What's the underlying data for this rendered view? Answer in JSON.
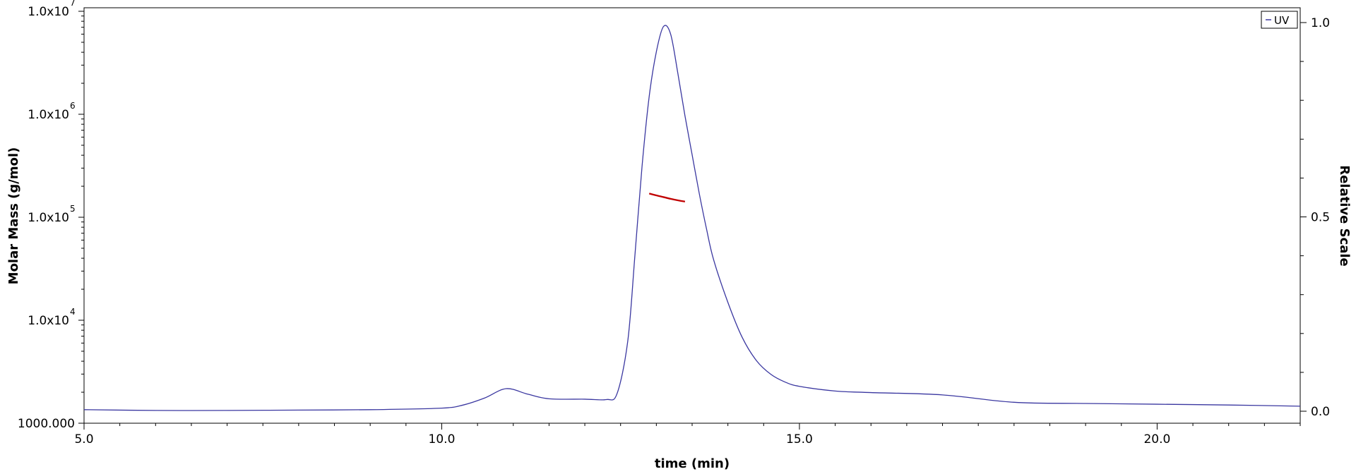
{
  "chart_data": {
    "type": "line",
    "xlabel": "time (min)",
    "ylabel": "Molar Mass (g/mol)",
    "y2label": "Relative Scale",
    "xlim": [
      5.0,
      22.0
    ],
    "ylim": [
      1000,
      10000000
    ],
    "y_scale": "log",
    "y2lim": [
      0.0,
      1.0
    ],
    "x_ticks": [
      "5.0",
      "10.0",
      "15.0",
      "20.0"
    ],
    "y_ticks": [
      {
        "base": "1000.000",
        "exp": ""
      },
      {
        "base": "1.0x10",
        "exp": "4"
      },
      {
        "base": "1.0x10",
        "exp": "5"
      },
      {
        "base": "1.0x10",
        "exp": "6"
      },
      {
        "base": "1.0x10",
        "exp": "7"
      }
    ],
    "y2_ticks": [
      "0.0",
      "0.5",
      "1.0"
    ],
    "legend": {
      "position": "top-right",
      "entries": [
        "UV"
      ]
    },
    "series": [
      {
        "name": "UV",
        "axis": "right",
        "color": "#3a37a0",
        "x": [
          5.0,
          6.0,
          7.0,
          8.0,
          9.0,
          10.0,
          10.3,
          10.6,
          10.9,
          11.2,
          11.5,
          12.0,
          12.3,
          12.45,
          12.6,
          12.7,
          12.8,
          12.9,
          13.0,
          13.1,
          13.2,
          13.3,
          13.4,
          13.5,
          13.6,
          13.7,
          13.8,
          14.0,
          14.2,
          14.4,
          14.6,
          14.8,
          15.0,
          15.5,
          16.0,
          17.0,
          18.0,
          19.0,
          20.0,
          21.0,
          22.0
        ],
        "y": [
          0.004,
          0.002,
          0.002,
          0.003,
          0.004,
          0.008,
          0.016,
          0.034,
          0.058,
          0.044,
          0.032,
          0.031,
          0.03,
          0.045,
          0.18,
          0.4,
          0.63,
          0.81,
          0.925,
          0.99,
          0.97,
          0.87,
          0.76,
          0.66,
          0.56,
          0.47,
          0.39,
          0.28,
          0.19,
          0.13,
          0.095,
          0.075,
          0.064,
          0.052,
          0.048,
          0.042,
          0.023,
          0.02,
          0.018,
          0.016,
          0.013
        ]
      },
      {
        "name": "Molar Mass",
        "axis": "left",
        "color": "#c00000",
        "x": [
          12.9,
          13.0,
          13.1,
          13.2,
          13.3,
          13.4
        ],
        "y": [
          170000,
          163000,
          157000,
          151000,
          146000,
          142000
        ]
      }
    ]
  }
}
